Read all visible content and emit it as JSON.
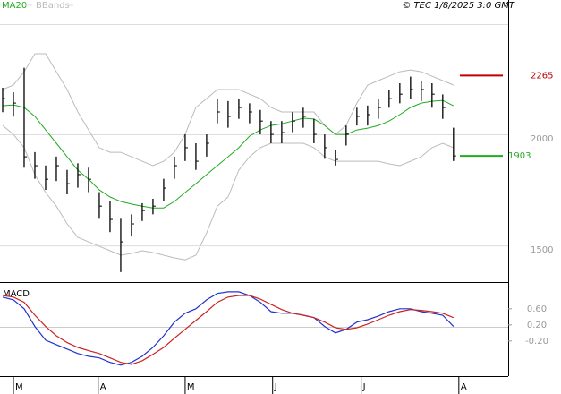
{
  "chart_data": [
    {
      "type": "ohlc",
      "x": [
        0,
        2,
        4,
        6,
        8,
        10,
        12,
        14,
        16,
        18,
        20,
        22,
        24,
        26,
        28,
        30,
        32,
        34,
        36,
        38,
        40,
        42,
        44,
        46,
        48,
        50,
        52,
        54,
        56,
        58,
        60,
        62,
        64,
        66,
        68,
        70,
        72,
        74,
        76,
        78,
        80,
        82,
        84
      ],
      "high": [
        2210,
        2190,
        2300,
        1920,
        1860,
        1900,
        1840,
        1870,
        1850,
        1740,
        1700,
        1620,
        1640,
        1690,
        1710,
        1800,
        1900,
        2000,
        1960,
        2000,
        2160,
        2150,
        2160,
        2140,
        2110,
        2060,
        2060,
        2100,
        2120,
        2070,
        2000,
        1930,
        2040,
        2120,
        2130,
        2160,
        2200,
        2230,
        2260,
        2240,
        2230,
        2180,
        2030
      ],
      "low": [
        2100,
        2080,
        1850,
        1800,
        1750,
        1790,
        1730,
        1760,
        1740,
        1620,
        1560,
        1380,
        1540,
        1610,
        1640,
        1700,
        1800,
        1880,
        1840,
        1900,
        2050,
        2030,
        2070,
        2050,
        2000,
        1960,
        1960,
        2010,
        2030,
        1960,
        1890,
        1860,
        1950,
        2040,
        2040,
        2070,
        2120,
        2140,
        2160,
        2150,
        2120,
        2070,
        1880
      ],
      "close": [
        2161,
        2141,
        1899,
        1859,
        1798,
        1859,
        1778,
        1819,
        1798,
        1677,
        1617,
        1516,
        1597,
        1657,
        1677,
        1758,
        1859,
        1940,
        1879,
        1960,
        2101,
        2081,
        2121,
        2101,
        2060,
        2000,
        2008,
        2060,
        2081,
        2000,
        1940,
        1887,
        2000,
        2081,
        2089,
        2121,
        2161,
        2181,
        2202,
        2202,
        2181,
        2121,
        1903
      ],
      "color": "#000000",
      "series": [
        {
          "name": "MA20",
          "color": "#22aa22",
          "values": [
            2129,
            2133,
            2121,
            2081,
            2020,
            1960,
            1899,
            1839,
            1798,
            1750,
            1718,
            1698,
            1686,
            1677,
            1669,
            1669,
            1698,
            1738,
            1778,
            1819,
            1859,
            1899,
            1940,
            1992,
            2020,
            2040,
            2048,
            2060,
            2073,
            2069,
            2040,
            2000,
            2000,
            2020,
            2028,
            2040,
            2060,
            2089,
            2121,
            2141,
            2149,
            2153,
            2129
          ]
        },
        {
          "name": "BBands",
          "color": "#bbbbbb",
          "upper": [
            2202,
            2222,
            2282,
            2363,
            2363,
            2282,
            2202,
            2101,
            2020,
            1940,
            1919,
            1919,
            1899,
            1879,
            1859,
            1879,
            1919,
            2000,
            2121,
            2161,
            2202,
            2202,
            2202,
            2181,
            2161,
            2121,
            2101,
            2101,
            2101,
            2101,
            2040,
            2000,
            2040,
            2141,
            2222,
            2242,
            2262,
            2282,
            2290,
            2282,
            2262,
            2242,
            2222
          ],
          "lower": [
            2040,
            2000,
            1940,
            1819,
            1738,
            1677,
            1597,
            1536,
            1516,
            1496,
            1476,
            1456,
            1464,
            1476,
            1468,
            1456,
            1444,
            1435,
            1456,
            1556,
            1677,
            1718,
            1839,
            1899,
            1940,
            1960,
            1960,
            1960,
            1960,
            1940,
            1899,
            1879,
            1879,
            1879,
            1879,
            1879,
            1867,
            1859,
            1879,
            1899,
            1940,
            1960,
            1940
          ]
        }
      ],
      "xlim": [
        -0.5,
        94.2
      ],
      "ylim": [
        1335,
        2605
      ],
      "yticks": [
        1500,
        2000
      ],
      "annotations": [
        {
          "value": 2265,
          "color": "#c00000"
        },
        {
          "value": 1903,
          "color": "#22aa22"
        }
      ],
      "source": "© TEC 1/8/2025 3:0 GMT"
    },
    {
      "type": "line",
      "title": "MACD",
      "x": [
        0,
        2,
        4,
        6,
        8,
        10,
        12,
        14,
        16,
        18,
        20,
        22,
        24,
        26,
        28,
        30,
        32,
        34,
        36,
        38,
        40,
        42,
        44,
        46,
        48,
        50,
        52,
        54,
        56,
        58,
        60,
        62,
        64,
        66,
        68,
        70,
        72,
        74,
        76,
        78,
        80,
        82,
        84
      ],
      "series": [
        {
          "color": "#2233cc",
          "values": [
            0.89,
            0.82,
            0.6,
            0.16,
            -0.18,
            -0.29,
            -0.4,
            -0.51,
            -0.58,
            -0.62,
            -0.73,
            -0.8,
            -0.73,
            -0.58,
            -0.36,
            -0.07,
            0.27,
            0.49,
            0.6,
            0.82,
            0.98,
            1.02,
            1.02,
            0.93,
            0.76,
            0.53,
            0.49,
            0.49,
            0.44,
            0.38,
            0.16,
            0.0,
            0.09,
            0.27,
            0.33,
            0.42,
            0.53,
            0.6,
            0.6,
            0.53,
            0.49,
            0.44,
            0.16
          ]
        },
        {
          "color": "#cc2222",
          "values": [
            0.93,
            0.89,
            0.76,
            0.44,
            0.16,
            -0.07,
            -0.24,
            -0.36,
            -0.44,
            -0.51,
            -0.62,
            -0.73,
            -0.78,
            -0.69,
            -0.53,
            -0.36,
            -0.13,
            0.09,
            0.31,
            0.53,
            0.76,
            0.89,
            0.93,
            0.93,
            0.84,
            0.71,
            0.58,
            0.49,
            0.44,
            0.38,
            0.27,
            0.13,
            0.09,
            0.13,
            0.22,
            0.33,
            0.44,
            0.53,
            0.58,
            0.56,
            0.53,
            0.49,
            0.38
          ]
        }
      ],
      "xlim": [
        -0.5,
        94.2
      ],
      "xticks": [
        {
          "value": 2.5,
          "label": "M"
        },
        {
          "value": 18.3,
          "label": "A"
        },
        {
          "value": 34.5,
          "label": "M"
        },
        {
          "value": 50.8,
          "label": "J"
        },
        {
          "value": 67.3,
          "label": "J"
        },
        {
          "value": 85.5,
          "label": "A"
        }
      ],
      "ylim": [
        -1.07,
        1.24
      ],
      "yticks": [
        {
          "value": 0.6,
          "label": "0.60"
        },
        {
          "value": 0.2,
          "label": "0.20"
        },
        {
          "value": -0.2,
          "label": "-0.20"
        }
      ]
    }
  ]
}
